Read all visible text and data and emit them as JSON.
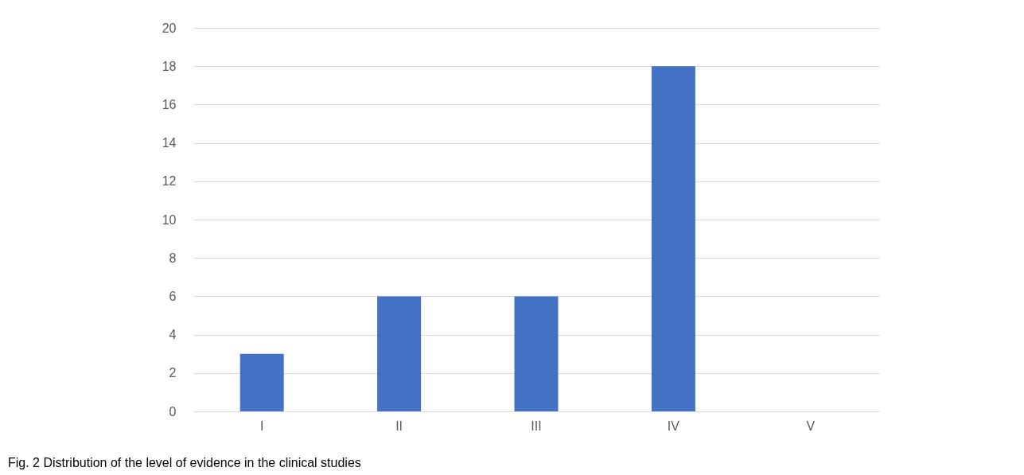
{
  "chart_data": {
    "type": "bar",
    "categories": [
      "I",
      "II",
      "III",
      "IV",
      "V"
    ],
    "values": [
      3,
      6,
      6,
      18,
      0
    ],
    "color": "#4472c4",
    "ylim": [
      0,
      20
    ],
    "yticks": [
      0,
      2,
      4,
      6,
      8,
      10,
      12,
      14,
      16,
      18,
      20
    ],
    "grid": "y",
    "annotations": [
      "Fig. 2 Distribution of the level of evidence in the clinical studies"
    ]
  }
}
